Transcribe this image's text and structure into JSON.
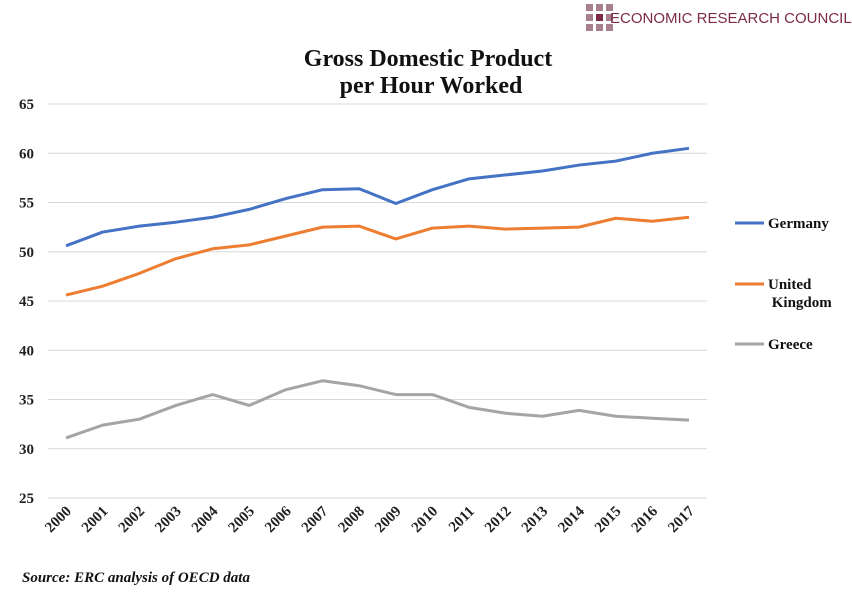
{
  "logo": "ECONOMIC RESEARCH COUNCIL",
  "source": "Source: ERC analysis of OECD data",
  "chart_data": {
    "type": "line",
    "title": "Gross Domestic Product per Hour Worked",
    "categories": [
      "2000",
      "2001",
      "2002",
      "2003",
      "2004",
      "2005",
      "2006",
      "2007",
      "2008",
      "2009",
      "2010",
      "2011",
      "2012",
      "2013",
      "2014",
      "2015",
      "2016",
      "2017"
    ],
    "series": [
      {
        "name": "Germany",
        "color": "#4472c4",
        "values": [
          50.6,
          52.0,
          52.6,
          53.0,
          53.5,
          54.3,
          55.4,
          56.3,
          56.4,
          54.9,
          56.3,
          57.4,
          57.8,
          58.2,
          58.8,
          59.2,
          60.0,
          60.5
        ]
      },
      {
        "name": "United Kingdom",
        "color": "#ed7d31",
        "values": [
          45.6,
          46.5,
          47.8,
          49.3,
          50.3,
          50.7,
          51.6,
          52.5,
          52.6,
          51.3,
          52.4,
          52.6,
          52.3,
          52.4,
          52.5,
          53.4,
          53.1,
          53.5
        ]
      },
      {
        "name": "Greece",
        "color": "#a5a5a5",
        "values": [
          31.1,
          32.4,
          33.0,
          34.4,
          35.5,
          34.4,
          36.0,
          36.9,
          36.4,
          35.5,
          35.5,
          34.2,
          33.6,
          33.3,
          33.9,
          33.3,
          33.1,
          32.9
        ]
      }
    ],
    "ylim": [
      25,
      65
    ],
    "yticks": [
      25,
      30,
      35,
      40,
      45,
      50,
      55,
      60,
      65
    ],
    "grid": true,
    "legend": "right"
  }
}
